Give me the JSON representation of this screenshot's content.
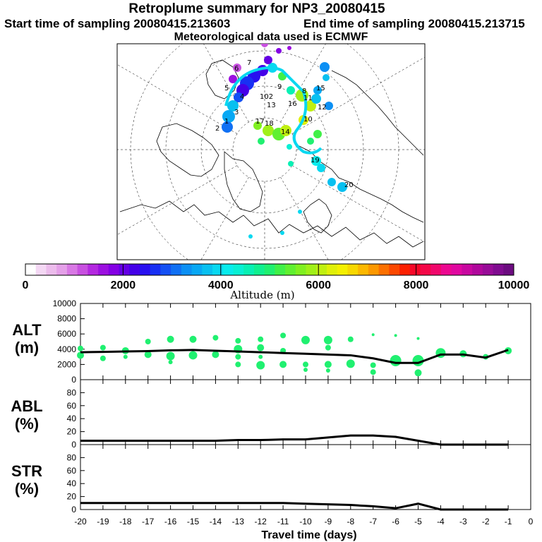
{
  "header": {
    "title": "Retroplume summary for NP3_20080415",
    "start_label": "Start time of sampling 20080415.213603",
    "end_label": "End time of sampling 20080415.213715",
    "met_label": "Meteorological data used is ECMWF"
  },
  "colorbar": {
    "ticks": [
      "0",
      "2000",
      "4000",
      "6000",
      "8000",
      "10000"
    ],
    "label": "Altitude (m)",
    "colors": [
      "#ffffff",
      "#f4d8f4",
      "#ecbcec",
      "#e4a0e8",
      "#d878e4",
      "#c850e0",
      "#b428e0",
      "#9c10e0",
      "#8400e4",
      "#6400e4",
      "#4400e8",
      "#2810f0",
      "#1830f4",
      "#1450f4",
      "#1070f4",
      "#0c90f4",
      "#08a8f4",
      "#08c0f0",
      "#08d8f0",
      "#08ecec",
      "#08f0d4",
      "#08f0b4",
      "#10f090",
      "#20f070",
      "#40f048",
      "#60f030",
      "#80f020",
      "#a0f018",
      "#c0f010",
      "#e0f008",
      "#f4f000",
      "#f8d800",
      "#fcb800",
      "#fc9800",
      "#fc7000",
      "#fc4800",
      "#fc2000",
      "#f80828",
      "#f40848",
      "#f0086c",
      "#ec0890",
      "#e008a0",
      "#c808a0",
      "#b0089c",
      "#980c98",
      "#800c90",
      "#6c0c80"
    ]
  },
  "map": {
    "numbers": [
      "1",
      "2",
      "3",
      "4",
      "5",
      "6",
      "7",
      "8",
      "9",
      "10",
      "11",
      "12",
      "13",
      "14",
      "15",
      "16",
      "17",
      "18",
      "19",
      "20"
    ],
    "label_102": "102"
  },
  "chart_data": [
    {
      "type": "scatter",
      "panel": "ALT",
      "ylabel": "ALT\n(m)",
      "ylabel_lines": [
        "ALT",
        "(m)"
      ],
      "ylim": [
        0,
        10000
      ],
      "yticks": [
        "0",
        "2000",
        "4000",
        "6000",
        "8000",
        "10000"
      ],
      "xlim": [
        -20,
        0
      ],
      "line": {
        "x": [
          -20,
          -19,
          -18,
          -17,
          -16,
          -15,
          -14,
          -13,
          -12,
          -11,
          -10,
          -9,
          -8,
          -7,
          -6,
          -5,
          -4,
          -3,
          -2,
          -1
        ],
        "y": [
          3600,
          3650,
          3700,
          3750,
          3850,
          3900,
          3800,
          3700,
          3600,
          3500,
          3400,
          3300,
          3200,
          2800,
          2200,
          2200,
          3300,
          3300,
          2900,
          3900
        ]
      },
      "points": [
        {
          "x": -20,
          "y": 4100,
          "r": 4
        },
        {
          "x": -20,
          "y": 3200,
          "r": 5
        },
        {
          "x": -19,
          "y": 4200,
          "r": 4
        },
        {
          "x": -19,
          "y": 2800,
          "r": 4
        },
        {
          "x": -18,
          "y": 3800,
          "r": 5
        },
        {
          "x": -18,
          "y": 3000,
          "r": 3
        },
        {
          "x": -17,
          "y": 5000,
          "r": 4
        },
        {
          "x": -17,
          "y": 3300,
          "r": 5
        },
        {
          "x": -16,
          "y": 5300,
          "r": 5
        },
        {
          "x": -16,
          "y": 3100,
          "r": 6
        },
        {
          "x": -16,
          "y": 2300,
          "r": 3
        },
        {
          "x": -15,
          "y": 5300,
          "r": 5
        },
        {
          "x": -15,
          "y": 3200,
          "r": 6
        },
        {
          "x": -14,
          "y": 5500,
          "r": 4
        },
        {
          "x": -14,
          "y": 3300,
          "r": 5
        },
        {
          "x": -13,
          "y": 5100,
          "r": 4
        },
        {
          "x": -13,
          "y": 4000,
          "r": 6
        },
        {
          "x": -13,
          "y": 3000,
          "r": 4
        },
        {
          "x": -13,
          "y": 2000,
          "r": 4
        },
        {
          "x": -12,
          "y": 5300,
          "r": 4
        },
        {
          "x": -12,
          "y": 4200,
          "r": 5
        },
        {
          "x": -12,
          "y": 3000,
          "r": 3
        },
        {
          "x": -12,
          "y": 1900,
          "r": 6
        },
        {
          "x": -11,
          "y": 5800,
          "r": 4
        },
        {
          "x": -11,
          "y": 3800,
          "r": 4
        },
        {
          "x": -11,
          "y": 2000,
          "r": 5
        },
        {
          "x": -10,
          "y": 5200,
          "r": 6
        },
        {
          "x": -10,
          "y": 2000,
          "r": 4
        },
        {
          "x": -10,
          "y": 1300,
          "r": 3
        },
        {
          "x": -9,
          "y": 5200,
          "r": 6
        },
        {
          "x": -9,
          "y": 4200,
          "r": 4
        },
        {
          "x": -9,
          "y": 2000,
          "r": 5
        },
        {
          "x": -9,
          "y": 1200,
          "r": 3
        },
        {
          "x": -8,
          "y": 5300,
          "r": 4
        },
        {
          "x": -8,
          "y": 2100,
          "r": 6
        },
        {
          "x": -7,
          "y": 5900,
          "r": 2
        },
        {
          "x": -7,
          "y": 1900,
          "r": 4
        },
        {
          "x": -7,
          "y": 1000,
          "r": 4
        },
        {
          "x": -6,
          "y": 5800,
          "r": 2
        },
        {
          "x": -6,
          "y": 2500,
          "r": 8
        },
        {
          "x": -5,
          "y": 5400,
          "r": 2
        },
        {
          "x": -5,
          "y": 2500,
          "r": 8
        },
        {
          "x": -5,
          "y": 900,
          "r": 5
        },
        {
          "x": -4,
          "y": 3500,
          "r": 7
        },
        {
          "x": -3,
          "y": 3400,
          "r": 5
        },
        {
          "x": -2,
          "y": 3000,
          "r": 4
        },
        {
          "x": -1,
          "y": 3800,
          "r": 5
        }
      ]
    },
    {
      "type": "line",
      "panel": "ABL",
      "ylabel": "ABL\n(%)",
      "ylabel_lines": [
        "ABL",
        "(%)"
      ],
      "ylim": [
        0,
        100
      ],
      "yticks": [
        "0",
        "20",
        "40",
        "60",
        "80"
      ],
      "xlim": [
        -20,
        0
      ],
      "x": [
        -20,
        -19,
        -18,
        -17,
        -16,
        -15,
        -14,
        -13,
        -12,
        -11,
        -10,
        -9,
        -8,
        -7,
        -6,
        -5,
        -4,
        -3,
        -2,
        -1
      ],
      "y": [
        6,
        6,
        6,
        6,
        6,
        6,
        6,
        7,
        7,
        8,
        8,
        11,
        14,
        14,
        12,
        6,
        0,
        0,
        0,
        0
      ]
    },
    {
      "type": "line",
      "panel": "STR",
      "ylabel": "STR\n(%)",
      "ylabel_lines": [
        "STR",
        "(%)"
      ],
      "ylim": [
        0,
        100
      ],
      "yticks": [
        "0",
        "20",
        "40",
        "60",
        "80"
      ],
      "xlim": [
        -20,
        0
      ],
      "x": [
        -20,
        -19,
        -18,
        -17,
        -16,
        -15,
        -14,
        -13,
        -12,
        -11,
        -10,
        -9,
        -8,
        -7,
        -6,
        -5,
        -4,
        -3,
        -2,
        -1
      ],
      "y": [
        10,
        10,
        10,
        10,
        10,
        10,
        10,
        10,
        10,
        10,
        9,
        8,
        7,
        5,
        2,
        9,
        0,
        0,
        0,
        0
      ],
      "xticks": [
        "-20",
        "-19",
        "-18",
        "-17",
        "-16",
        "-15",
        "-14",
        "-13",
        "-12",
        "-11",
        "-10",
        "-9",
        "-8",
        "-7",
        "-6",
        "-5",
        "-4",
        "-3",
        "-2",
        "-1",
        "0"
      ],
      "xlabel": "Travel time (days)"
    }
  ]
}
